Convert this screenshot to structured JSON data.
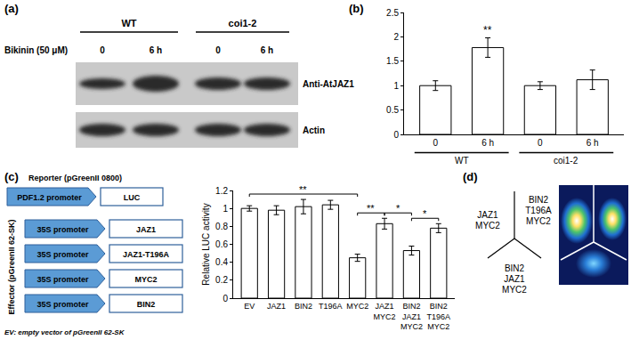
{
  "blot": {
    "label": "(a)",
    "treatment": "Bikinin (50 μM)",
    "genotypes": [
      "WT",
      "coi1-2"
    ],
    "lanes": [
      "0",
      "6 h",
      "0",
      "6 h"
    ],
    "rows": [
      "Anti-AtJAZ1",
      "Actin"
    ]
  },
  "chart_data": [
    {
      "type": "bar",
      "title": "(b)",
      "categories": [
        "0",
        "6 h",
        "0",
        "6 h"
      ],
      "group_labels": [
        "WT",
        "WT",
        "coi1-2",
        "coi1-2"
      ],
      "values": [
        1.0,
        1.78,
        1.0,
        1.12
      ],
      "errors": [
        0.1,
        0.2,
        0.08,
        0.2
      ],
      "annotations": [
        {
          "category": 1,
          "text": "**"
        }
      ],
      "color": "#ffffff",
      "ylim": [
        0,
        2.5
      ],
      "yticks": [
        0,
        0.5,
        1,
        1.5,
        2,
        2.5
      ],
      "grid": false
    },
    {
      "type": "bar",
      "title": "(c)",
      "ylabel": "Relative LUC activity",
      "categories": [
        "EV",
        "JAZ1",
        "BIN2",
        "T196A",
        "MYC2",
        "JAZ1 MYC2",
        "BIN2 JAZ1 MYC2",
        "BIN2 T196A MYC2"
      ],
      "values": [
        1.0,
        0.98,
        1.02,
        1.04,
        0.45,
        0.83,
        0.53,
        0.78
      ],
      "errors": [
        0.03,
        0.05,
        0.08,
        0.05,
        0.04,
        0.06,
        0.05,
        0.05
      ],
      "annotations": [
        {
          "from": 0,
          "to": 4,
          "text": "**"
        },
        {
          "from": 4,
          "to": 5,
          "text": "**"
        },
        {
          "from": 5,
          "to": 6,
          "text": "*"
        },
        {
          "from": 6,
          "to": 7,
          "text": "*"
        }
      ],
      "color": "#ffffff",
      "ylim": [
        0,
        1.2
      ],
      "yticks": [
        0,
        0.2,
        0.4,
        0.6,
        0.8,
        1,
        1.2
      ],
      "grid": false
    }
  ],
  "construct_diagram": {
    "reporter": {
      "title": "Reporter (pGreenII 0800)",
      "promoter": "PDF1.2 promoter",
      "gene": "LUC"
    },
    "effector": {
      "title": "Effector (pGreenII 62-SK)",
      "promoter": "35S promoter",
      "genes": [
        "JAZ1",
        "JAZ1-T196A",
        "MYC2",
        "BIN2"
      ]
    },
    "note": "EV: empty vector of pGreenII 62-SK"
  },
  "luminescence": {
    "label": "(d)",
    "sections": [
      "JAZ1 MYC2",
      "BIN2 T196A MYC2",
      "BIN2 JAZ1 MYC2"
    ]
  }
}
